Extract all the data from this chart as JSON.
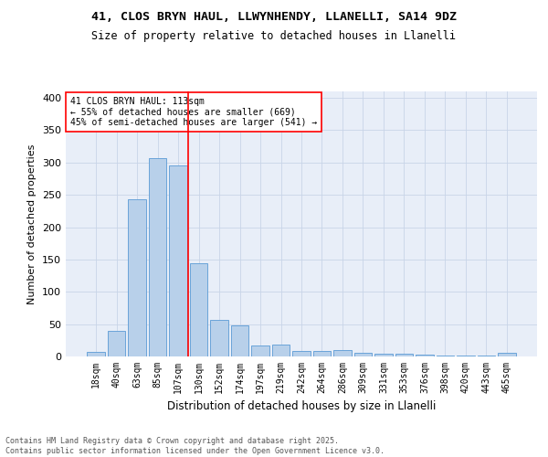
{
  "title1": "41, CLOS BRYN HAUL, LLWYNHENDY, LLANELLI, SA14 9DZ",
  "title2": "Size of property relative to detached houses in Llanelli",
  "xlabel": "Distribution of detached houses by size in Llanelli",
  "ylabel": "Number of detached properties",
  "categories": [
    "18sqm",
    "40sqm",
    "63sqm",
    "85sqm",
    "107sqm",
    "130sqm",
    "152sqm",
    "174sqm",
    "197sqm",
    "219sqm",
    "242sqm",
    "264sqm",
    "286sqm",
    "309sqm",
    "331sqm",
    "353sqm",
    "376sqm",
    "398sqm",
    "420sqm",
    "443sqm",
    "465sqm"
  ],
  "values": [
    7,
    39,
    243,
    307,
    295,
    144,
    56,
    48,
    17,
    19,
    8,
    8,
    10,
    5,
    4,
    4,
    3,
    1,
    1,
    1,
    5
  ],
  "bar_color": "#b8d0ea",
  "bar_edge_color": "#5b9bd5",
  "grid_color": "#c8d4e8",
  "background_color": "#e8eef8",
  "annotation_line1": "41 CLOS BRYN HAUL: 113sqm",
  "annotation_line2": "← 55% of detached houses are smaller (669)",
  "annotation_line3": "45% of semi-detached houses are larger (541) →",
  "footer": "Contains HM Land Registry data © Crown copyright and database right 2025.\nContains public sector information licensed under the Open Government Licence v3.0.",
  "ylim": [
    0,
    410
  ],
  "yticks": [
    0,
    50,
    100,
    150,
    200,
    250,
    300,
    350,
    400
  ]
}
